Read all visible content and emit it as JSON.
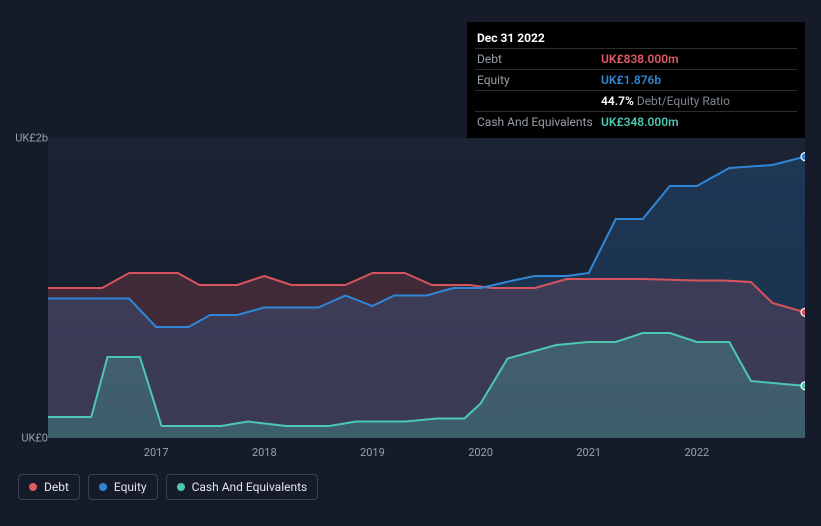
{
  "tooltip": {
    "date": "Dec 31 2022",
    "rows": [
      {
        "label": "Debt",
        "value": "UK£838.000m",
        "color": "#e15a63"
      },
      {
        "label": "Equity",
        "value": "UK£1.876b",
        "color": "#2f86d6"
      },
      {
        "label": "",
        "value": "44.7%",
        "sub": " Debt/Equity Ratio",
        "color": "#ffffff"
      },
      {
        "label": "Cash And Equivalents",
        "value": "UK£348.000m",
        "color": "#4cc7b0"
      }
    ]
  },
  "chart": {
    "type": "area",
    "background": "#151b29",
    "plot_background_top": "#1c2434",
    "plot_background_bottom": "#141b29",
    "grid_color": "#4a5264",
    "y_axis": {
      "min": 0,
      "max": 2000,
      "ticks": [
        {
          "value": 0,
          "label": "UK£0"
        },
        {
          "value": 2000,
          "label": "UK£2b"
        }
      ],
      "label_color": "#9aa0a8",
      "label_fontsize": 11
    },
    "x_axis": {
      "min": 2016.0,
      "max": 2023.0,
      "ticks": [
        2017,
        2018,
        2019,
        2020,
        2021,
        2022
      ],
      "label_color": "#9aa0a8",
      "label_fontsize": 11
    },
    "series": [
      {
        "name": "Debt",
        "stroke": "#d5545d",
        "fill": "#d5545d",
        "fill_opacity": 0.22,
        "stroke_width": 2,
        "marker_end": true,
        "data": [
          [
            2016.0,
            1000
          ],
          [
            2016.5,
            1000
          ],
          [
            2016.75,
            1100
          ],
          [
            2017.2,
            1100
          ],
          [
            2017.4,
            1020
          ],
          [
            2017.75,
            1020
          ],
          [
            2018.0,
            1080
          ],
          [
            2018.25,
            1020
          ],
          [
            2018.75,
            1020
          ],
          [
            2019.0,
            1100
          ],
          [
            2019.3,
            1100
          ],
          [
            2019.55,
            1020
          ],
          [
            2019.9,
            1020
          ],
          [
            2020.1,
            1000
          ],
          [
            2020.5,
            1000
          ],
          [
            2020.8,
            1060
          ],
          [
            2021.3,
            1060
          ],
          [
            2021.5,
            1060
          ],
          [
            2022.0,
            1050
          ],
          [
            2022.25,
            1050
          ],
          [
            2022.5,
            1040
          ],
          [
            2022.7,
            900
          ],
          [
            2023.0,
            838
          ]
        ]
      },
      {
        "name": "Equity",
        "stroke": "#2f86d6",
        "fill": "#2f86d6",
        "fill_opacity": 0.2,
        "stroke_width": 2,
        "marker_end": true,
        "data": [
          [
            2016.0,
            930
          ],
          [
            2016.5,
            930
          ],
          [
            2016.75,
            930
          ],
          [
            2017.0,
            740
          ],
          [
            2017.3,
            740
          ],
          [
            2017.5,
            820
          ],
          [
            2017.75,
            820
          ],
          [
            2018.0,
            870
          ],
          [
            2018.5,
            870
          ],
          [
            2018.75,
            950
          ],
          [
            2019.0,
            880
          ],
          [
            2019.2,
            950
          ],
          [
            2019.5,
            950
          ],
          [
            2019.75,
            1000
          ],
          [
            2020.0,
            1000
          ],
          [
            2020.3,
            1050
          ],
          [
            2020.5,
            1080
          ],
          [
            2020.8,
            1080
          ],
          [
            2021.0,
            1100
          ],
          [
            2021.25,
            1460
          ],
          [
            2021.5,
            1460
          ],
          [
            2021.75,
            1680
          ],
          [
            2022.0,
            1680
          ],
          [
            2022.3,
            1800
          ],
          [
            2022.7,
            1820
          ],
          [
            2023.0,
            1876
          ]
        ]
      },
      {
        "name": "Cash And Equivalents",
        "stroke": "#4cc7b0",
        "fill": "#4cc7b0",
        "fill_opacity": 0.25,
        "stroke_width": 2,
        "marker_end": true,
        "data": [
          [
            2016.0,
            140
          ],
          [
            2016.4,
            140
          ],
          [
            2016.55,
            540
          ],
          [
            2016.85,
            540
          ],
          [
            2017.05,
            80
          ],
          [
            2017.6,
            80
          ],
          [
            2017.85,
            110
          ],
          [
            2018.2,
            80
          ],
          [
            2018.6,
            80
          ],
          [
            2018.85,
            110
          ],
          [
            2019.3,
            110
          ],
          [
            2019.6,
            130
          ],
          [
            2019.85,
            130
          ],
          [
            2020.0,
            230
          ],
          [
            2020.25,
            530
          ],
          [
            2020.5,
            580
          ],
          [
            2020.7,
            620
          ],
          [
            2021.0,
            640
          ],
          [
            2021.25,
            640
          ],
          [
            2021.5,
            700
          ],
          [
            2021.75,
            700
          ],
          [
            2022.0,
            640
          ],
          [
            2022.3,
            640
          ],
          [
            2022.5,
            380
          ],
          [
            2022.8,
            360
          ],
          [
            2023.0,
            348
          ]
        ]
      }
    ],
    "legend": {
      "items": [
        {
          "label": "Debt",
          "color": "#e15a63"
        },
        {
          "label": "Equity",
          "color": "#2f86d6"
        },
        {
          "label": "Cash And Equivalents",
          "color": "#4cc7b0"
        }
      ],
      "border_color": "#3a4252",
      "text_color": "#e3e6ea",
      "fontsize": 12
    }
  }
}
